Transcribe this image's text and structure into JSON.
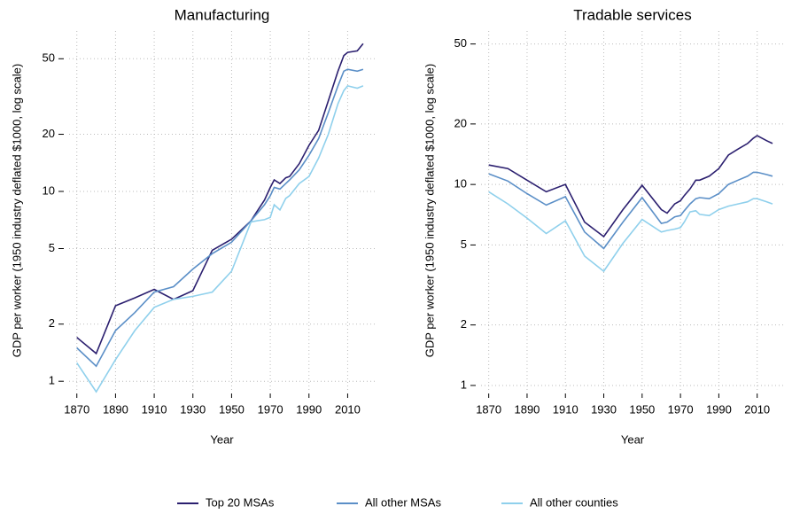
{
  "chart_data": [
    {
      "type": "line",
      "title": "Manufacturing",
      "xlabel": "Year",
      "ylabel": "GDP per worker (1950 industry deflated $1000, log scale)",
      "log_y": true,
      "grid": true,
      "x": [
        1870,
        1880,
        1890,
        1900,
        1910,
        1920,
        1930,
        1940,
        1950,
        1960,
        1963,
        1967,
        1970,
        1972,
        1975,
        1978,
        1980,
        1985,
        1990,
        1995,
        2000,
        2005,
        2008,
        2010,
        2015,
        2018
      ],
      "series": [
        {
          "name": "Top 20 MSAs",
          "color": "#2b1f6f",
          "values": [
            1.7,
            1.4,
            2.5,
            2.75,
            3.05,
            2.7,
            3.0,
            4.9,
            5.6,
            7.0,
            7.8,
            9.0,
            10.5,
            11.5,
            11.0,
            11.8,
            12,
            14,
            17.5,
            21,
            30,
            43,
            52,
            54,
            55,
            60
          ]
        },
        {
          "name": "All other MSAs",
          "color": "#5b8fc7",
          "values": [
            1.5,
            1.2,
            1.85,
            2.3,
            2.95,
            3.15,
            3.9,
            4.7,
            5.4,
            7.0,
            7.6,
            8.5,
            9.5,
            10.5,
            10.3,
            11,
            11.5,
            13,
            15.5,
            19,
            26,
            36,
            43,
            44,
            43,
            44
          ]
        },
        {
          "name": "All other counties",
          "color": "#8fd0ec",
          "values": [
            1.25,
            0.88,
            1.3,
            1.85,
            2.45,
            2.7,
            2.8,
            2.95,
            3.8,
            6.9,
            7.0,
            7.1,
            7.3,
            8.5,
            8.0,
            9.2,
            9.5,
            11,
            12,
            15,
            20,
            29,
            34,
            36,
            35,
            36
          ]
        }
      ],
      "xlim": [
        1866,
        2024
      ],
      "xticks": [
        1870,
        1890,
        1910,
        1930,
        1950,
        1970,
        1990,
        2010
      ],
      "ylim": [
        0.9,
        70
      ],
      "yticks": [
        1,
        2,
        5,
        10,
        20,
        50
      ]
    },
    {
      "type": "line",
      "title": "Tradable services",
      "xlabel": "Year",
      "ylabel": "GDP per worker (1950 industry deflated $1000, log scale)",
      "log_y": true,
      "grid": true,
      "x": [
        1870,
        1880,
        1890,
        1900,
        1910,
        1920,
        1930,
        1940,
        1950,
        1960,
        1963,
        1967,
        1970,
        1972,
        1975,
        1978,
        1980,
        1985,
        1990,
        1995,
        2000,
        2005,
        2008,
        2010,
        2015,
        2018
      ],
      "series": [
        {
          "name": "Top 20 MSAs",
          "color": "#2b1f6f",
          "values": [
            12.5,
            12,
            10.5,
            9.2,
            10,
            6.5,
            5.5,
            7.5,
            9.9,
            7.5,
            7.2,
            8,
            8.3,
            8.8,
            9.5,
            10.5,
            10.5,
            11,
            12,
            14,
            15,
            16,
            17,
            17.5,
            16.5,
            16
          ]
        },
        {
          "name": "All other MSAs",
          "color": "#5b8fc7",
          "values": [
            11.3,
            10.4,
            9,
            7.9,
            8.7,
            5.8,
            4.8,
            6.5,
            8.6,
            6.4,
            6.5,
            6.9,
            7,
            7.4,
            8,
            8.5,
            8.6,
            8.5,
            9,
            10,
            10.5,
            11,
            11.5,
            11.5,
            11.2,
            11
          ]
        },
        {
          "name": "All other counties",
          "color": "#8fd0ec",
          "values": [
            9.2,
            8,
            6.8,
            5.7,
            6.6,
            4.4,
            3.7,
            5.1,
            6.7,
            5.8,
            5.9,
            6.0,
            6.1,
            6.5,
            7.3,
            7.4,
            7.1,
            7,
            7.5,
            7.8,
            8.0,
            8.2,
            8.5,
            8.5,
            8.2,
            8
          ]
        }
      ],
      "xlim": [
        1866,
        2024
      ],
      "xticks": [
        1870,
        1890,
        1910,
        1930,
        1950,
        1970,
        1990,
        2010
      ],
      "ylim": [
        0.95,
        58
      ],
      "yticks": [
        1,
        2,
        5,
        10,
        20,
        50
      ]
    }
  ]
}
